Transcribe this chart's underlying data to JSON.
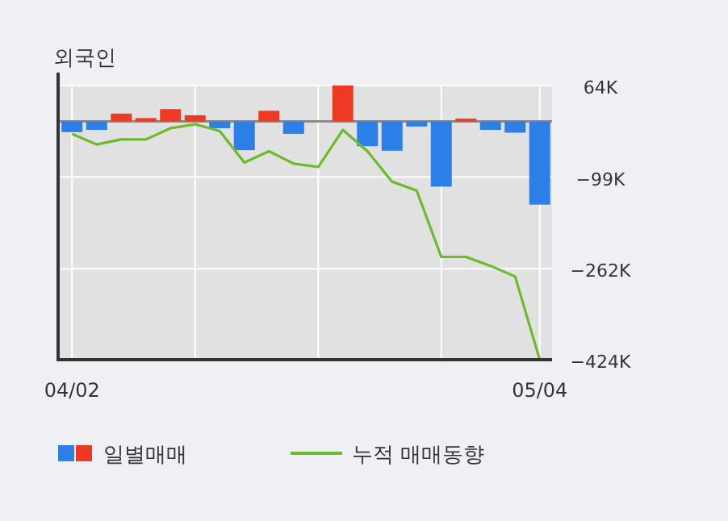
{
  "chart_data": {
    "type": "bar",
    "title": "외국인",
    "categories": [
      "04/02",
      null,
      null,
      null,
      null,
      null,
      null,
      null,
      null,
      null,
      null,
      null,
      null,
      null,
      null,
      null,
      null,
      null,
      null,
      "05/04"
    ],
    "series": [
      {
        "name": "일별매매",
        "colors": [
          "#2b7fe6",
          "#2b7fe6",
          "#ee3a24",
          "#ee3a24",
          "#ee3a24",
          "#ee3a24",
          "#2b7fe6",
          "#2b7fe6",
          "#ee3a24",
          "#2b7fe6",
          "#2b7fe6",
          "#ee3a24",
          "#2b7fe6",
          "#2b7fe6",
          "#2b7fe6",
          "#2b7fe6",
          "#ee3a24",
          "#2b7fe6",
          "#2b7fe6",
          "#2b7fe6"
        ],
        "values": [
          -19,
          -15,
          14,
          6,
          22,
          11,
          -12,
          -51,
          19,
          -22,
          0,
          64,
          -44,
          -52,
          -9,
          -116,
          5,
          -15,
          -20,
          -148
        ]
      },
      {
        "name": "누적 매매동향",
        "type": "line",
        "color": "#6cbb2a",
        "values": [
          -22,
          -41,
          -32,
          -32,
          -12,
          -5,
          -17,
          -73,
          -53,
          -75,
          -81,
          -15,
          -53,
          -107,
          -123,
          -241,
          -241,
          -257,
          -276,
          -424
        ]
      }
    ],
    "ylim": [
      -424,
      64
    ],
    "yticks": [
      {
        "value": 64,
        "label": "64K"
      },
      {
        "value": -99,
        "label": "−99K"
      },
      {
        "value": -262,
        "label": "−262K"
      },
      {
        "value": -424,
        "label": "−424K"
      }
    ],
    "grid": true,
    "legend": "bottom"
  }
}
